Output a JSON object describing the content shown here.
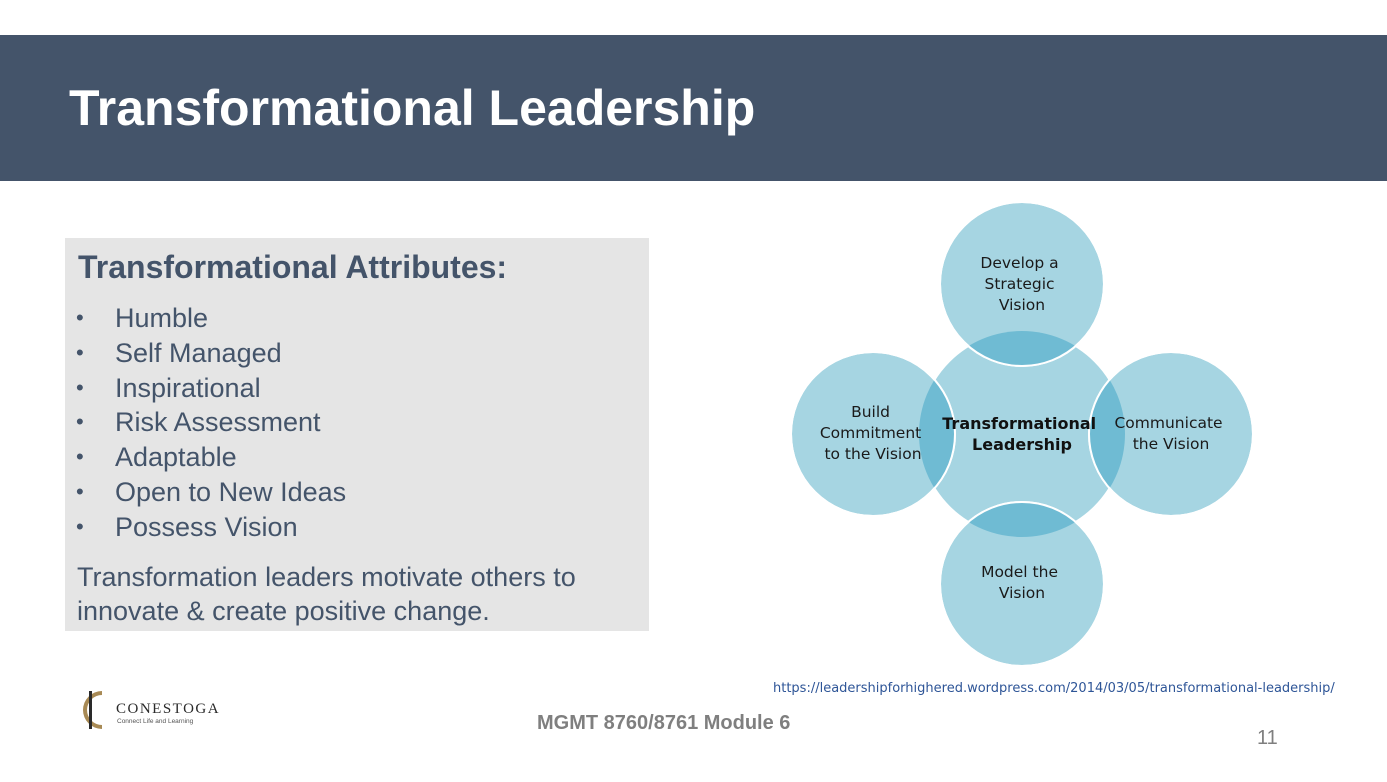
{
  "slide": {
    "title": "Transformational Leadership",
    "page_number": "11",
    "footer": "MGMT 8760/8761 Module 6",
    "source_url": "https://leadershipforhighered.wordpress.com/2014/03/05/transformational-leadership/"
  },
  "attributes": {
    "heading": "Transformational Attributes:",
    "items": [
      "Humble",
      "Self Managed",
      "Inspirational",
      "Risk Assessment",
      "Adaptable",
      "Open to New Ideas",
      "Possess Vision"
    ],
    "summary": "Transformation leaders motivate others to innovate & create positive change."
  },
  "diagram": {
    "center": [
      "Transformational",
      "Leadership"
    ],
    "top": [
      "Develop a",
      "Strategic",
      "Vision"
    ],
    "right": [
      "Communicate",
      "the Vision"
    ],
    "bottom": [
      "Model the",
      "Vision"
    ],
    "left": [
      "Build",
      "Commitment",
      "to the Vision"
    ],
    "colors": {
      "fill": "#a6d5e2",
      "overlap": "#6fbbd3",
      "stroke": "#ffffff"
    }
  },
  "logo": {
    "name": "CONESTOGA",
    "tagline": "Connect Life and Learning",
    "colors": {
      "gold": "#a88a55",
      "dark": "#2a2a2a"
    }
  }
}
